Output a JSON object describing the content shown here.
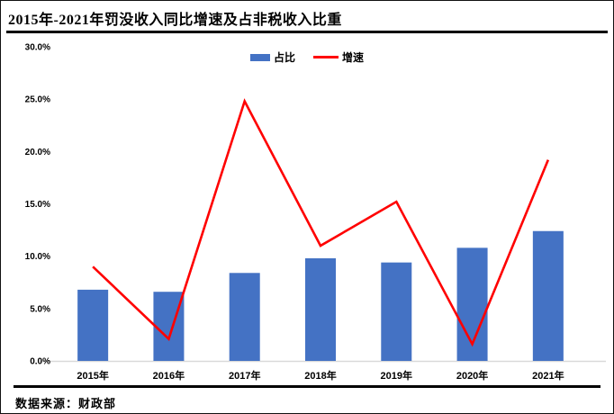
{
  "header": {
    "title": "2015年-2021年罚没收入同比增速及占非税收入比重"
  },
  "footer": {
    "source": "数据来源：财政部"
  },
  "colors": {
    "bar": "#4472C4",
    "line": "#FF0000",
    "axis_baseline": "#D9D9D9",
    "rule": "#000000"
  },
  "chart_data": {
    "type": "bar+line",
    "title": "2015年-2021年罚没收入同比增速及占非税收入比重",
    "categories": [
      "2015年",
      "2016年",
      "2017年",
      "2018年",
      "2019年",
      "2020年",
      "2021年"
    ],
    "series": [
      {
        "name": "占比",
        "type": "bar",
        "color": "#4472C4",
        "values": [
          6.8,
          6.6,
          8.4,
          9.8,
          9.4,
          10.8,
          12.4
        ]
      },
      {
        "name": "增速",
        "type": "line",
        "color": "#FF0000",
        "values": [
          9.0,
          2.1,
          24.8,
          11.0,
          15.2,
          1.6,
          19.2
        ]
      }
    ],
    "unit": "%",
    "ylim": [
      0,
      30
    ],
    "ytick_step": 5,
    "yticks": [
      "0.0%",
      "5.0%",
      "10.0%",
      "15.0%",
      "20.0%",
      "25.0%",
      "30.0%"
    ],
    "grid": false,
    "legend_position": "top-center",
    "source": "数据来源：财政部"
  }
}
